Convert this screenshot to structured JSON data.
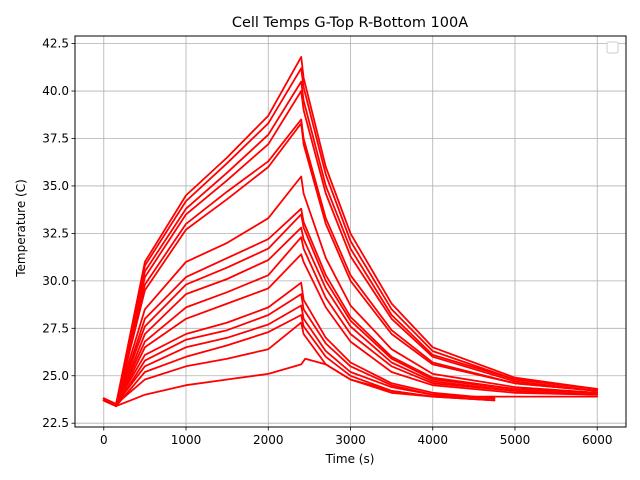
{
  "chart_data": {
    "type": "line",
    "title": "Cell Temps G-Top R-Bottom 100A",
    "xlabel": "Time (s)",
    "ylabel": "Temperature (C)",
    "xlim": [
      -350,
      6350
    ],
    "ylim": [
      22.3,
      42.9
    ],
    "xticks": [
      0,
      1000,
      2000,
      3000,
      4000,
      5000,
      6000
    ],
    "xtick_labels": [
      "0",
      "1000",
      "2000",
      "3000",
      "4000",
      "5000",
      "6000"
    ],
    "yticks": [
      22.5,
      25.0,
      27.5,
      30.0,
      32.5,
      35.0,
      37.5,
      40.0,
      42.5
    ],
    "ytick_labels": [
      "22.5",
      "25.0",
      "27.5",
      "30.0",
      "32.5",
      "35.0",
      "37.5",
      "40.0",
      "42.5"
    ],
    "grid": true,
    "legend_position": "top-right",
    "series_color": "#ff0000",
    "series": [
      {
        "x": [
          0,
          150,
          500,
          1000,
          1500,
          2000,
          2400,
          2450,
          2700,
          3000,
          3500,
          4000,
          5000,
          6000
        ],
        "y": [
          23.7,
          23.4,
          24.0,
          24.5,
          24.8,
          25.1,
          25.6,
          25.9,
          25.6,
          24.8,
          24.2,
          23.9,
          23.9,
          23.9
        ]
      },
      {
        "x": [
          0,
          150,
          500,
          1000,
          1500,
          2000,
          2400,
          2430,
          2700,
          3000,
          3500,
          4000,
          4750
        ],
        "y": [
          23.8,
          23.5,
          24.8,
          25.5,
          25.9,
          26.4,
          27.8,
          27.2,
          25.6,
          24.8,
          24.1,
          23.9,
          23.7
        ]
      },
      {
        "x": [
          0,
          150,
          500,
          1000,
          1500,
          2000,
          2400,
          2430,
          2700,
          3000,
          3500,
          4000,
          4750
        ],
        "y": [
          23.7,
          23.4,
          25.2,
          26.0,
          26.6,
          27.3,
          28.2,
          27.6,
          26.0,
          25.0,
          24.2,
          23.9,
          23.7
        ]
      },
      {
        "x": [
          0,
          150,
          500,
          1000,
          1500,
          2000,
          2400,
          2430,
          2700,
          3000,
          3500,
          4000,
          4750
        ],
        "y": [
          23.8,
          23.5,
          25.5,
          26.5,
          27.0,
          27.7,
          28.7,
          28.0,
          26.3,
          25.2,
          24.4,
          24.0,
          23.8
        ]
      },
      {
        "x": [
          0,
          150,
          500,
          1000,
          1500,
          2000,
          2400,
          2430,
          2700,
          3000,
          3500,
          4000,
          4750
        ],
        "y": [
          23.7,
          23.4,
          25.8,
          26.9,
          27.4,
          28.2,
          29.3,
          28.5,
          26.7,
          25.5,
          24.5,
          24.0,
          23.8
        ]
      },
      {
        "x": [
          0,
          150,
          500,
          1000,
          1500,
          2000,
          2400,
          2430,
          2700,
          3000,
          3500,
          4000,
          4750
        ],
        "y": [
          23.8,
          23.5,
          26.1,
          27.2,
          27.8,
          28.6,
          29.9,
          29.0,
          27.0,
          25.7,
          24.6,
          24.1,
          23.8
        ]
      },
      {
        "x": [
          0,
          150,
          500,
          1000,
          1500,
          2000,
          2400,
          2430,
          2700,
          3000,
          3500,
          4000,
          5000,
          6000
        ],
        "y": [
          23.7,
          23.4,
          26.5,
          28.0,
          28.8,
          29.6,
          31.4,
          31.0,
          28.6,
          26.8,
          25.2,
          24.5,
          24.1,
          24.0
        ]
      },
      {
        "x": [
          0,
          150,
          500,
          1000,
          1500,
          2000,
          2400,
          2430,
          2700,
          3000,
          3500,
          4000,
          5000,
          6000
        ],
        "y": [
          23.8,
          23.5,
          26.8,
          28.6,
          29.4,
          30.3,
          32.3,
          31.7,
          29.1,
          27.2,
          25.5,
          24.6,
          24.2,
          24.0
        ]
      },
      {
        "x": [
          0,
          150,
          500,
          1000,
          1500,
          2000,
          2400,
          2430,
          2700,
          3000,
          3500,
          4000,
          5000,
          6000
        ],
        "y": [
          23.7,
          23.4,
          27.2,
          29.3,
          30.1,
          31.1,
          32.8,
          32.2,
          29.6,
          27.6,
          25.7,
          24.7,
          24.2,
          24.0
        ]
      },
      {
        "x": [
          0,
          150,
          500,
          1000,
          1500,
          2000,
          2400,
          2430,
          2700,
          3000,
          3500,
          4000,
          5000,
          6000
        ],
        "y": [
          23.8,
          23.5,
          27.6,
          29.8,
          30.7,
          31.7,
          33.5,
          32.8,
          30.0,
          27.9,
          25.9,
          24.8,
          24.3,
          24.1
        ]
      },
      {
        "x": [
          0,
          150,
          500,
          1000,
          1500,
          2000,
          2400,
          2430,
          2700,
          3000,
          3500,
          4000,
          5000,
          6000
        ],
        "y": [
          23.7,
          23.4,
          28.0,
          30.2,
          31.2,
          32.2,
          33.8,
          33.1,
          30.3,
          28.1,
          26.0,
          24.9,
          24.3,
          24.1
        ]
      },
      {
        "x": [
          0,
          150,
          500,
          1000,
          1500,
          2000,
          2400,
          2430,
          2700,
          3000,
          3500,
          4000,
          5000,
          6000
        ],
        "y": [
          23.8,
          23.5,
          28.5,
          31.0,
          32.0,
          33.3,
          35.5,
          34.6,
          31.2,
          28.7,
          26.4,
          25.1,
          24.4,
          24.1
        ]
      },
      {
        "x": [
          0,
          150,
          500,
          1000,
          1500,
          2000,
          2400,
          2430,
          2700,
          3000,
          3500,
          4000,
          5000,
          6000
        ],
        "y": [
          23.7,
          23.4,
          29.5,
          32.7,
          34.3,
          36.0,
          38.3,
          37.2,
          33.0,
          30.0,
          27.2,
          25.6,
          24.6,
          24.2
        ]
      },
      {
        "x": [
          0,
          150,
          500,
          1000,
          1500,
          2000,
          2400,
          2430,
          2700,
          3000,
          3500,
          4000,
          5000,
          6000
        ],
        "y": [
          23.8,
          23.5,
          29.8,
          33.0,
          34.7,
          36.3,
          38.5,
          37.5,
          33.3,
          30.3,
          27.4,
          25.7,
          24.6,
          24.2
        ]
      },
      {
        "x": [
          0,
          150,
          500,
          1000,
          1500,
          2000,
          2400,
          2430,
          2700,
          3000,
          3500,
          4000,
          5000,
          6000
        ],
        "y": [
          23.7,
          23.4,
          30.2,
          33.5,
          35.3,
          37.2,
          40.0,
          39.0,
          34.6,
          31.3,
          28.0,
          26.0,
          24.7,
          24.2
        ]
      },
      {
        "x": [
          0,
          150,
          500,
          1000,
          1500,
          2000,
          2400,
          2430,
          2700,
          3000,
          3500,
          4000,
          5000,
          6000
        ],
        "y": [
          23.8,
          23.5,
          30.5,
          33.8,
          35.7,
          37.7,
          40.5,
          39.5,
          35.0,
          31.7,
          28.2,
          26.1,
          24.8,
          24.3
        ]
      },
      {
        "x": [
          0,
          150,
          500,
          1000,
          1500,
          2000,
          2400,
          2430,
          2700,
          3000,
          3500,
          4000,
          5000,
          6000
        ],
        "y": [
          23.7,
          23.4,
          30.8,
          34.2,
          36.2,
          38.3,
          41.2,
          40.2,
          35.6,
          32.1,
          28.5,
          26.3,
          24.8,
          24.3
        ]
      },
      {
        "x": [
          0,
          150,
          500,
          1000,
          1500,
          2000,
          2400,
          2430,
          2700,
          3000,
          3500,
          4000,
          5000,
          6000
        ],
        "y": [
          23.8,
          23.5,
          31.0,
          34.5,
          36.5,
          38.7,
          41.8,
          40.7,
          36.0,
          32.5,
          28.8,
          26.5,
          24.9,
          24.3
        ]
      }
    ]
  }
}
